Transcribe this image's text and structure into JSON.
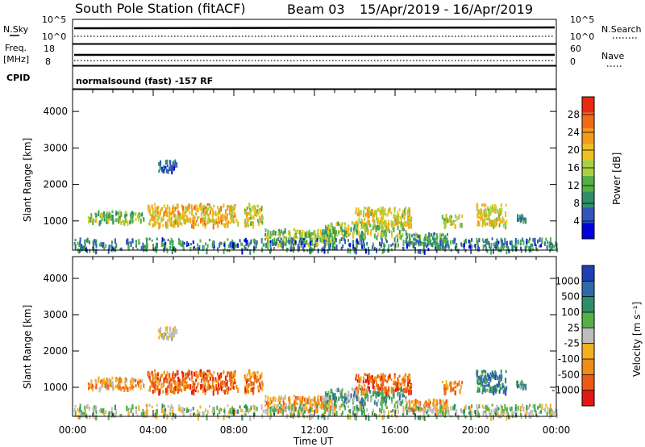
{
  "title": {
    "station": "South Pole Station (fitACF)",
    "beam": "Beam 03",
    "dates": "15/Apr/2019 - 16/Apr/2019"
  },
  "summary_panels": {
    "nsky_label": "N.Sky",
    "nsky_ticks": [
      "10^5",
      "10^0"
    ],
    "nsearch_label": "N.Search",
    "nsearch_ticks": [
      "10^5",
      "10^0"
    ],
    "freq_label_1": "Freq.",
    "freq_label_2": "[MHz]",
    "freq_ticks": [
      "18",
      "8"
    ],
    "nave_label": "Nave",
    "nave_ticks": [
      "60",
      "0"
    ],
    "cpid_label": "CPID",
    "cpid_text": "normalsound (fast) -157 RF"
  },
  "chart_data": [
    {
      "type": "heatmap",
      "name": "power",
      "ylabel": "Slant Range [km]",
      "ylim": [
        200,
        4600
      ],
      "yticks": [
        "4000",
        "3000",
        "2000",
        "1000"
      ],
      "ytick_values": [
        4000,
        3000,
        2000,
        1000
      ],
      "xlabel": "Time UT",
      "xlim": [
        0,
        24
      ],
      "xticks": [
        "00:00",
        "04:00",
        "08:00",
        "12:00",
        "16:00",
        "20:00",
        "00:00"
      ],
      "colorbar": {
        "label": "Power [dB]",
        "min": 0,
        "max": 32,
        "tick_labels": [
          "28",
          "24",
          "20",
          "16",
          "12",
          "8",
          "4"
        ],
        "tick_values": [
          28,
          24,
          20,
          16,
          12,
          8,
          4
        ],
        "colors": [
          "#0000dd",
          "#3355bb",
          "#2d8f6a",
          "#55b046",
          "#a8d040",
          "#f0c020",
          "#f39a18",
          "#f06a18",
          "#e82810"
        ]
      },
      "blobs": [
        {
          "t0": 0.7,
          "t1": 2.7,
          "r0": 1000,
          "r1": 1300,
          "level": 0.45
        },
        {
          "t0": 2.8,
          "t1": 3.5,
          "r0": 1000,
          "r1": 1300,
          "level": 0.4
        },
        {
          "t0": 3.7,
          "t1": 8.2,
          "r0": 900,
          "r1": 1500,
          "level": 0.65
        },
        {
          "t0": 8.5,
          "t1": 9.4,
          "r0": 900,
          "r1": 1500,
          "level": 0.55
        },
        {
          "t0": 4.2,
          "t1": 5.2,
          "r0": 2400,
          "r1": 2700,
          "level": 0.15
        },
        {
          "t0": 9.5,
          "t1": 13.0,
          "r0": 400,
          "r1": 800,
          "level": 0.45
        },
        {
          "t0": 12.5,
          "t1": 16.5,
          "r0": 600,
          "r1": 1000,
          "level": 0.45
        },
        {
          "t0": 14.0,
          "t1": 16.8,
          "r0": 900,
          "r1": 1400,
          "level": 0.6
        },
        {
          "t0": 16.5,
          "t1": 18.6,
          "r0": 400,
          "r1": 700,
          "level": 0.35
        },
        {
          "t0": 18.3,
          "t1": 19.3,
          "r0": 900,
          "r1": 1200,
          "level": 0.5
        },
        {
          "t0": 20.0,
          "t1": 21.5,
          "r0": 900,
          "r1": 1500,
          "level": 0.6
        },
        {
          "t0": 22.0,
          "t1": 22.5,
          "r0": 1000,
          "r1": 1200,
          "level": 0.3
        },
        {
          "t0": 0.0,
          "t1": 24.0,
          "r0": 220,
          "r1": 550,
          "level": 0.25
        }
      ]
    },
    {
      "type": "heatmap",
      "name": "velocity",
      "ylabel": "Slant Range [km]",
      "ylim": [
        200,
        4600
      ],
      "yticks": [
        "4000",
        "3000",
        "2000",
        "1000"
      ],
      "ytick_values": [
        4000,
        3000,
        2000,
        1000
      ],
      "xlabel": "Time UT",
      "xlim": [
        0,
        24
      ],
      "xticks": [
        "00:00",
        "04:00",
        "08:00",
        "12:00",
        "16:00",
        "20:00",
        "00:00"
      ],
      "colorbar": {
        "label": "Velocity [m s⁻¹]",
        "tick_labels": [
          "1000",
          "500",
          "100",
          "25",
          "-25",
          "-100",
          "-500",
          "-1000"
        ],
        "colors": [
          "#1f3fb5",
          "#2e6aa8",
          "#2d8f6a",
          "#55b046",
          "#bdbdbd",
          "#f5b020",
          "#f08c18",
          "#ee5a14",
          "#e01a10"
        ]
      },
      "blobs": [
        {
          "t0": 0.7,
          "t1": 2.7,
          "r0": 1000,
          "r1": 1300,
          "level": 0.7
        },
        {
          "t0": 2.8,
          "t1": 3.5,
          "r0": 1000,
          "r1": 1300,
          "level": 0.7
        },
        {
          "t0": 3.7,
          "t1": 8.2,
          "r0": 900,
          "r1": 1500,
          "level": 0.8
        },
        {
          "t0": 8.5,
          "t1": 9.4,
          "r0": 900,
          "r1": 1500,
          "level": 0.75
        },
        {
          "t0": 4.2,
          "t1": 5.2,
          "r0": 2400,
          "r1": 2700,
          "level": 0.5
        },
        {
          "t0": 9.5,
          "t1": 13.0,
          "r0": 400,
          "r1": 800,
          "level": 0.65
        },
        {
          "t0": 12.5,
          "t1": 16.5,
          "r0": 600,
          "r1": 1000,
          "level": 0.35
        },
        {
          "t0": 14.0,
          "t1": 16.8,
          "r0": 900,
          "r1": 1400,
          "level": 0.8
        },
        {
          "t0": 16.5,
          "t1": 18.6,
          "r0": 400,
          "r1": 700,
          "level": 0.72
        },
        {
          "t0": 18.3,
          "t1": 19.3,
          "r0": 900,
          "r1": 1200,
          "level": 0.75
        },
        {
          "t0": 20.0,
          "t1": 21.5,
          "r0": 900,
          "r1": 1500,
          "level": 0.25
        },
        {
          "t0": 22.0,
          "t1": 22.5,
          "r0": 1000,
          "r1": 1200,
          "level": 0.3
        },
        {
          "t0": 0.0,
          "t1": 24.0,
          "r0": 220,
          "r1": 550,
          "level": 0.45
        }
      ]
    }
  ]
}
